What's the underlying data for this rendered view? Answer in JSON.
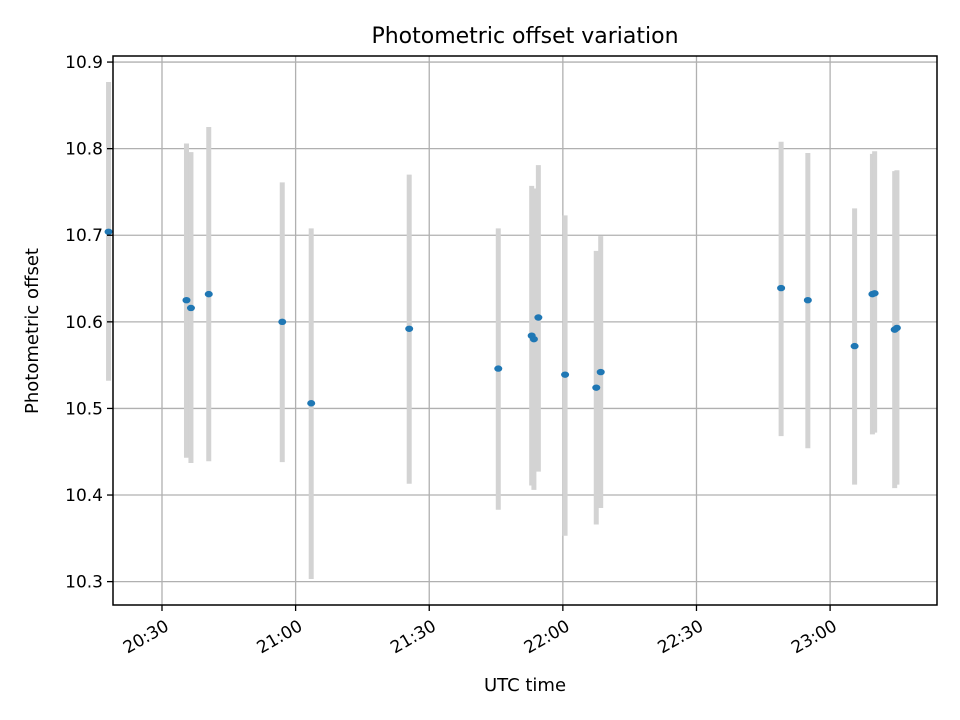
{
  "chart_data": {
    "type": "scatter",
    "title": "Photometric offset variation",
    "xlabel": "UTC time",
    "ylabel": "Photometric offset",
    "x_ticks": [
      "20:30",
      "21:00",
      "21:30",
      "22:00",
      "22:30",
      "23:00"
    ],
    "y_ticks": [
      "10.3",
      "10.4",
      "10.5",
      "10.6",
      "10.7",
      "10.8",
      "10.9"
    ],
    "xlim": [
      "20:19",
      "23:24"
    ],
    "ylim": [
      10.273,
      10.907
    ],
    "grid": true,
    "colors": {
      "point": "#1f77b4",
      "errorbar": "#d3d3d3",
      "grid": "#b0b0b0"
    },
    "points": [
      {
        "time": "20:18:00",
        "y": 10.704,
        "ylow": 10.532,
        "yhigh": 10.877
      },
      {
        "time": "20:35:30",
        "y": 10.625,
        "ylow": 10.443,
        "yhigh": 10.806
      },
      {
        "time": "20:36:30",
        "y": 10.616,
        "ylow": 10.437,
        "yhigh": 10.796
      },
      {
        "time": "20:40:30",
        "y": 10.632,
        "ylow": 10.439,
        "yhigh": 10.825
      },
      {
        "time": "20:57:00",
        "y": 10.6,
        "ylow": 10.438,
        "yhigh": 10.761
      },
      {
        "time": "21:03:30",
        "y": 10.506,
        "ylow": 10.303,
        "yhigh": 10.708
      },
      {
        "time": "21:25:30",
        "y": 10.592,
        "ylow": 10.413,
        "yhigh": 10.77
      },
      {
        "time": "21:45:30",
        "y": 10.546,
        "ylow": 10.383,
        "yhigh": 10.708
      },
      {
        "time": "21:53:00",
        "y": 10.584,
        "ylow": 10.411,
        "yhigh": 10.757
      },
      {
        "time": "21:53:30",
        "y": 10.58,
        "ylow": 10.406,
        "yhigh": 10.754
      },
      {
        "time": "21:54:30",
        "y": 10.605,
        "ylow": 10.427,
        "yhigh": 10.781
      },
      {
        "time": "22:00:30",
        "y": 10.539,
        "ylow": 10.353,
        "yhigh": 10.723
      },
      {
        "time": "22:07:30",
        "y": 10.524,
        "ylow": 10.366,
        "yhigh": 10.682
      },
      {
        "time": "22:08:30",
        "y": 10.542,
        "ylow": 10.385,
        "yhigh": 10.699
      },
      {
        "time": "22:49:00",
        "y": 10.639,
        "ylow": 10.468,
        "yhigh": 10.808
      },
      {
        "time": "22:55:00",
        "y": 10.625,
        "ylow": 10.454,
        "yhigh": 10.795
      },
      {
        "time": "23:05:30",
        "y": 10.572,
        "ylow": 10.412,
        "yhigh": 10.731
      },
      {
        "time": "23:09:30",
        "y": 10.632,
        "ylow": 10.47,
        "yhigh": 10.794
      },
      {
        "time": "23:10:00",
        "y": 10.633,
        "ylow": 10.472,
        "yhigh": 10.797
      },
      {
        "time": "23:14:30",
        "y": 10.591,
        "ylow": 10.408,
        "yhigh": 10.774
      },
      {
        "time": "23:15:00",
        "y": 10.593,
        "ylow": 10.412,
        "yhigh": 10.775
      }
    ]
  }
}
